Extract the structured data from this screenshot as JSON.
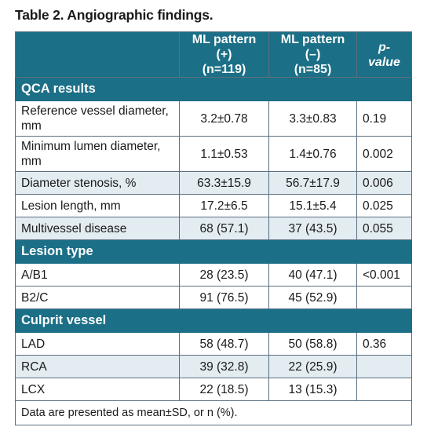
{
  "title": "Table 2. Angiographic findings.",
  "headers": {
    "c1_line1": "ML pattern (+)",
    "c1_line2": "(n=119)",
    "c2_line1": "ML pattern (–)",
    "c2_line2": "(n=85)",
    "p": "p-value"
  },
  "sections": {
    "qca": "QCA results",
    "lesion": "Lesion type",
    "culprit": "Culprit vessel"
  },
  "rows": [
    {
      "label": "Reference vessel diameter, mm",
      "a": "3.2±0.78",
      "b": "3.3±0.83",
      "p": "0.19"
    },
    {
      "label": "Minimum lumen diameter, mm",
      "a": "1.1±0.53",
      "b": "1.4±0.76",
      "p": "0.002"
    },
    {
      "label": "Diameter stenosis, %",
      "a": "63.3±15.9",
      "b": "56.7±17.9",
      "p": "0.006"
    },
    {
      "label": "Lesion length, mm",
      "a": "17.2±6.5",
      "b": "15.1±5.4",
      "p": "0.025"
    },
    {
      "label": "Multivessel disease",
      "a": "68 (57.1)",
      "b": "37 (43.5)",
      "p": "0.055"
    },
    {
      "label": "A/B1",
      "a": "28 (23.5)",
      "b": "40 (47.1)",
      "p": "<0.001"
    },
    {
      "label": "B2/C",
      "a": "91 (76.5)",
      "b": "45 (52.9)",
      "p": ""
    },
    {
      "label": "LAD",
      "a": "58 (48.7)",
      "b": "50 (58.8)",
      "p": "0.36"
    },
    {
      "label": "RCA",
      "a": "39 (32.8)",
      "b": "22 (25.9)",
      "p": ""
    },
    {
      "label": "LCX",
      "a": "22 (18.5)",
      "b": "13 (15.3)",
      "p": ""
    }
  ],
  "footnote": "Data are presented as mean±SD, or n (%).",
  "colors": {
    "header_bg": "#1b6f86",
    "alt_row_bg": "#e3ecf1"
  }
}
